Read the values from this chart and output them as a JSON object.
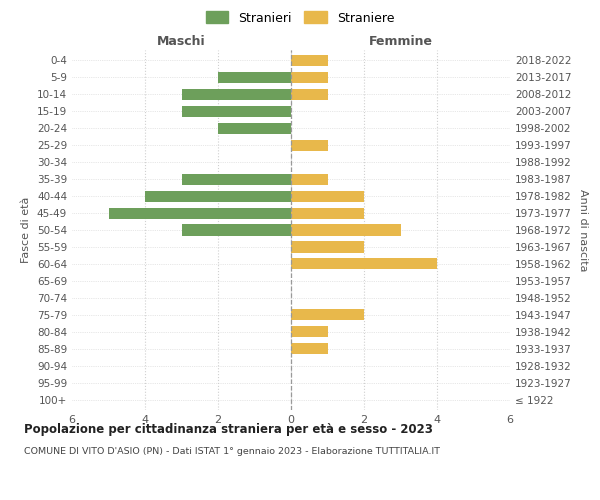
{
  "age_groups": [
    "100+",
    "95-99",
    "90-94",
    "85-89",
    "80-84",
    "75-79",
    "70-74",
    "65-69",
    "60-64",
    "55-59",
    "50-54",
    "45-49",
    "40-44",
    "35-39",
    "30-34",
    "25-29",
    "20-24",
    "15-19",
    "10-14",
    "5-9",
    "0-4"
  ],
  "birth_years": [
    "≤ 1922",
    "1923-1927",
    "1928-1932",
    "1933-1937",
    "1938-1942",
    "1943-1947",
    "1948-1952",
    "1953-1957",
    "1958-1962",
    "1963-1967",
    "1968-1972",
    "1973-1977",
    "1978-1982",
    "1983-1987",
    "1988-1992",
    "1993-1997",
    "1998-2002",
    "2003-2007",
    "2008-2012",
    "2013-2017",
    "2018-2022"
  ],
  "maschi": [
    0,
    0,
    0,
    0,
    0,
    0,
    0,
    0,
    0,
    0,
    3,
    5,
    4,
    3,
    0,
    0,
    2,
    3,
    3,
    2,
    0
  ],
  "femmine": [
    0,
    0,
    0,
    1,
    1,
    2,
    0,
    0,
    4,
    2,
    3,
    2,
    2,
    1,
    0,
    1,
    0,
    0,
    1,
    1,
    1
  ],
  "color_maschi": "#6d9f5b",
  "color_femmine": "#e8b84b",
  "title": "Popolazione per cittadinanza straniera per età e sesso - 2023",
  "subtitle": "COMUNE DI VITO D'ASIO (PN) - Dati ISTAT 1° gennaio 2023 - Elaborazione TUTTITALIA.IT",
  "legend_maschi": "Stranieri",
  "legend_femmine": "Straniere",
  "label_left": "Maschi",
  "label_right": "Femmine",
  "ylabel_left": "Fasce di età",
  "ylabel_right": "Anni di nascita",
  "xlim": 6,
  "background_color": "#ffffff",
  "grid_color": "#d0d0d0"
}
